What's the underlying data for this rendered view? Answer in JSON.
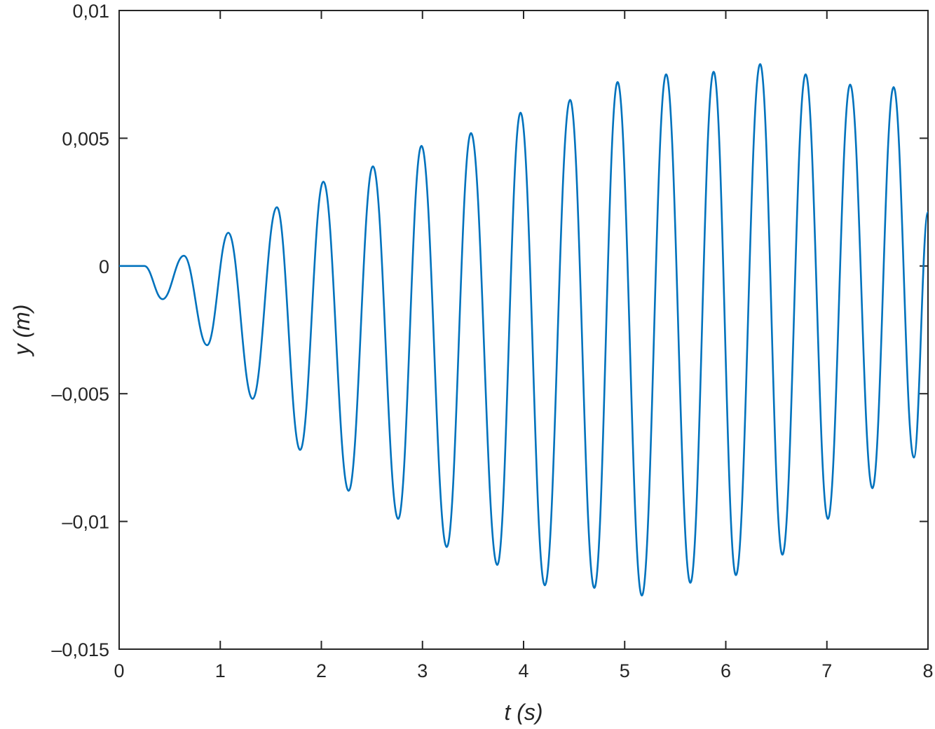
{
  "chart_data": {
    "type": "line",
    "xlabel": "t (s)",
    "ylabel": "y (m)",
    "xlim": [
      0,
      8
    ],
    "ylim": [
      -0.015,
      0.01
    ],
    "xticks": [
      0,
      1,
      2,
      3,
      4,
      5,
      6,
      7,
      8
    ],
    "yticks": [
      {
        "value": -0.015,
        "label": "–0,015"
      },
      {
        "value": -0.01,
        "label": "–0,01"
      },
      {
        "value": -0.005,
        "label": "–0,005"
      },
      0,
      {
        "value": 0.005,
        "label": "0,005"
      },
      {
        "value": 0.01,
        "label": "0,01"
      }
    ],
    "grid": false,
    "series": [
      {
        "color": "#0072bd",
        "x": [
          0,
          0.25,
          0.43,
          0.64,
          0.87,
          1.08,
          1.32,
          1.56,
          1.79,
          2.02,
          2.27,
          2.51,
          2.76,
          2.99,
          3.24,
          3.48,
          3.74,
          3.97,
          4.21,
          4.46,
          4.7,
          4.93,
          5.17,
          5.41,
          5.65,
          5.88,
          6.1,
          6.34,
          6.56,
          6.79,
          7.01,
          7.23,
          7.45,
          7.66,
          7.86,
          8
        ],
        "values": [
          0,
          0,
          -0.0013,
          0.0004,
          -0.0031,
          0.0013,
          -0.0052,
          0.0023,
          -0.0072,
          0.0033,
          -0.0088,
          0.0039,
          -0.0099,
          0.0047,
          -0.011,
          0.0052,
          -0.0117,
          0.006,
          -0.0125,
          0.0065,
          -0.0126,
          0.0072,
          -0.0129,
          0.0075,
          -0.0124,
          0.0076,
          -0.0121,
          0.0079,
          -0.0113,
          0.0075,
          -0.0099,
          0.0071,
          -0.0087,
          0.007,
          -0.0075,
          0.0021
        ]
      }
    ]
  }
}
